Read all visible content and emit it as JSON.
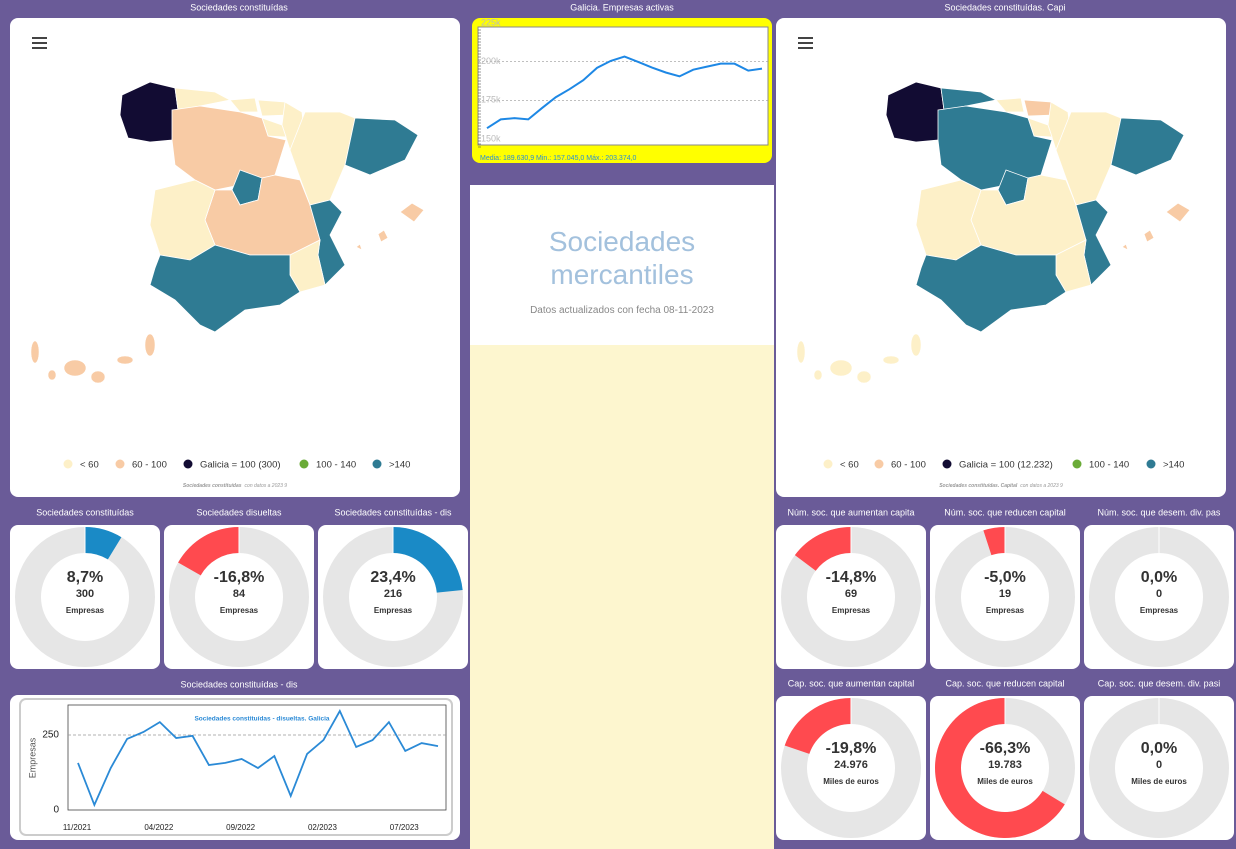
{
  "maps": [
    {
      "title": "Sociedades constituídas",
      "legend": [
        {
          "label": "< 60",
          "color": "#fdf0c8"
        },
        {
          "label": "60 - 100",
          "color": "#f8cba5"
        },
        {
          "label": "Galicia = 100 (300)",
          "color": "#120c33"
        },
        {
          "label": "100 - 140",
          "color": "#6aab37"
        },
        {
          "label": ">140",
          "color": "#2f7b93"
        }
      ],
      "footer_bold": "Sociedades constituídas",
      "footer": "con datos a 2023 9"
    },
    {
      "title": "Sociedades constituídas. Capi",
      "legend": [
        {
          "label": "< 60",
          "color": "#fdf0c8"
        },
        {
          "label": "60 - 100",
          "color": "#f8cba5"
        },
        {
          "label": "Galicia = 100 (12.232)",
          "color": "#120c33"
        },
        {
          "label": "100 - 140",
          "color": "#6aab37"
        },
        {
          "label": ">140",
          "color": "#2f7b93"
        }
      ],
      "footer_bold": "Sociedades constituídas. Capital",
      "footer": "con datos a 2023 9"
    }
  ],
  "header": {
    "title": "Sociedades mercantiles",
    "subtitle": "Datos actualizados con fecha 08-11-2023"
  },
  "chart_data": [
    {
      "type": "line",
      "title": "Galicia. Empresas activas",
      "color": "#1e88e5",
      "categories": [
        null,
        null,
        null,
        null,
        null,
        null,
        null,
        null,
        null,
        null,
        null,
        null,
        null,
        null,
        null,
        null,
        null,
        null,
        null,
        null,
        null
      ],
      "values": [
        157000,
        162700,
        163500,
        162700,
        170000,
        177000,
        182200,
        188000,
        196000,
        200500,
        203300,
        199800,
        196200,
        193000,
        190500,
        194800,
        196800,
        198700,
        198700,
        194200,
        195500
      ],
      "ylim": [
        150000,
        225000
      ],
      "yticks": [
        {
          "value": 150000,
          "label": "150k"
        },
        {
          "value": 175000,
          "label": "175k"
        },
        {
          "value": 200000,
          "label": "200k"
        },
        {
          "value": 225000,
          "label": "225k"
        }
      ],
      "grid": true,
      "footer": "Media: 189.630,9 Min.: 157.045,0 Máx.: 203.374,0"
    },
    {
      "type": "line",
      "title": "Sociedades constituídas - dis",
      "subtitle": "Sociedades constituídas - disueltas. Galicia",
      "y_label": "Empresas",
      "color": "#2b8ad6",
      "categories": [
        "11/2021",
        null,
        null,
        null,
        null,
        "04/2022",
        null,
        null,
        null,
        null,
        "09/2022",
        null,
        null,
        null,
        null,
        "02/2023",
        null,
        null,
        null,
        null,
        "07/2023",
        null,
        null
      ],
      "values": [
        157,
        17,
        140,
        237,
        260,
        293,
        240,
        247,
        150,
        157,
        170,
        140,
        180,
        47,
        187,
        233,
        330,
        210,
        233,
        293,
        197,
        223,
        213
      ],
      "ylim": [
        0,
        350
      ],
      "yticks": [
        0,
        250
      ],
      "grid": true
    }
  ],
  "donuts": [
    {
      "title": "Sociedades constituídas",
      "value": 8.7,
      "value_label": "8,7%",
      "count": 300,
      "unit": "Empresas"
    },
    {
      "title": "Sociedades disueltas",
      "value": -16.8,
      "value_label": "-16,8%",
      "count": 84,
      "unit": "Empresas"
    },
    {
      "title": "Sociedades constituídas - dis",
      "value": 23.4,
      "value_label": "23,4%",
      "count": 216,
      "unit": "Empresas"
    },
    {
      "title": "Núm. soc. que aumentan capita",
      "value": -14.8,
      "value_label": "-14,8%",
      "count": 69,
      "unit": "Empresas"
    },
    {
      "title": "Núm. soc. que reducen capital",
      "value": -5.0,
      "value_label": "-5,0%",
      "count": 19,
      "unit": "Empresas"
    },
    {
      "title": "Núm. soc. que desem. div. pas",
      "value": 0,
      "value_label": "0,0%",
      "count": 0,
      "unit": "Empresas"
    },
    {
      "title": "Cap. soc. que aumentan capital",
      "value": -19.8,
      "value_label": "-19,8%",
      "count": 24976,
      "count_label": "24.976",
      "unit": "Miles de euros"
    },
    {
      "title": "Cap. soc. que reducen capital",
      "value": -66.3,
      "value_label": "-66,3%",
      "count": 19783,
      "count_label": "19.783",
      "unit": "Miles de euros"
    },
    {
      "title": "Cap. soc. que desem. div. pasi",
      "value": 0,
      "value_label": "0,0%",
      "count": 0,
      "unit": "Miles de euros"
    }
  ]
}
